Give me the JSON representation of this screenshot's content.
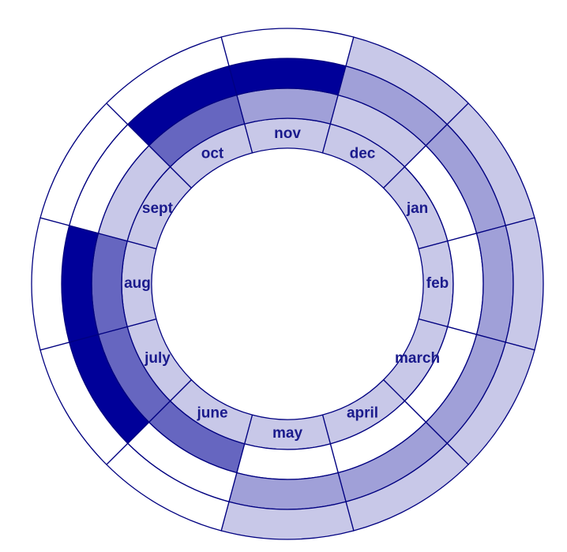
{
  "chart_data": {
    "type": "heatmap",
    "layout": "radial",
    "categories": [
      "nov",
      "dec",
      "jan",
      "feb",
      "march",
      "april",
      "may",
      "june",
      "july",
      "aug",
      "sept",
      "oct"
    ],
    "rings": [
      {
        "values": [
          1,
          1,
          1,
          1,
          1,
          1,
          1,
          1,
          1,
          1,
          1,
          1
        ]
      },
      {
        "values": [
          2,
          1,
          0,
          0,
          0,
          0,
          0,
          3,
          3,
          3,
          1,
          3
        ]
      },
      {
        "values": [
          4,
          2,
          2,
          2,
          2,
          2,
          2,
          0,
          4,
          4,
          0,
          4
        ]
      },
      {
        "values": [
          0,
          1,
          1,
          1,
          1,
          1,
          1,
          0,
          0,
          0,
          0,
          0
        ]
      }
    ],
    "levels": 4,
    "colors": {
      "0": "#ffffff",
      "1": "#c8c8e8",
      "2": "#a0a0d8",
      "3": "#6666c0",
      "4": "#000099"
    },
    "stroke": "#000080",
    "label_color": "#1a1a8c",
    "grid": false,
    "legend": "none"
  }
}
